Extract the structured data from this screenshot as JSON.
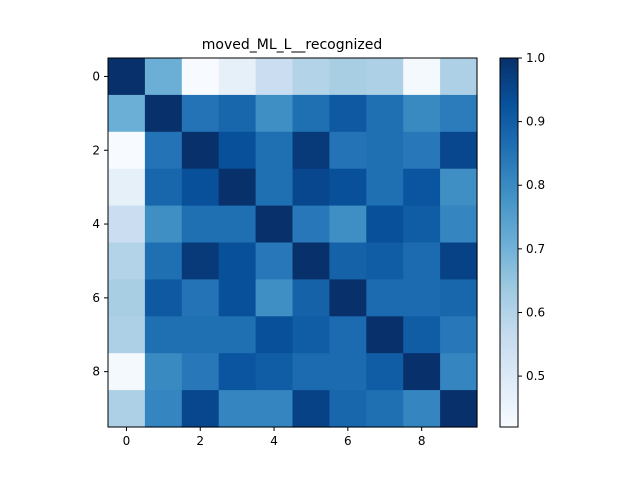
{
  "chart_data": {
    "type": "heatmap",
    "title": "moved_ML_L__recognized",
    "xlabel": "",
    "ylabel": "",
    "x_ticks": [
      "0",
      "2",
      "4",
      "6",
      "8"
    ],
    "y_ticks": [
      "0",
      "2",
      "4",
      "6",
      "8"
    ],
    "colorbar": {
      "min": 0.42,
      "max": 1.0,
      "ticks": [
        "0.5",
        "0.6",
        "0.7",
        "0.8",
        "0.9",
        "1.0"
      ],
      "colormap": "Blues"
    },
    "matrix": [
      [
        1.0,
        0.71,
        0.42,
        0.47,
        0.55,
        0.6,
        0.62,
        0.61,
        0.43,
        0.61
      ],
      [
        0.71,
        1.0,
        0.85,
        0.88,
        0.79,
        0.86,
        0.91,
        0.86,
        0.8,
        0.83
      ],
      [
        0.42,
        0.85,
        1.0,
        0.93,
        0.86,
        0.98,
        0.85,
        0.86,
        0.84,
        0.95
      ],
      [
        0.47,
        0.88,
        0.93,
        1.0,
        0.86,
        0.95,
        0.93,
        0.86,
        0.92,
        0.79
      ],
      [
        0.55,
        0.79,
        0.86,
        0.86,
        1.0,
        0.84,
        0.79,
        0.93,
        0.9,
        0.81
      ],
      [
        0.6,
        0.86,
        0.98,
        0.93,
        0.84,
        1.0,
        0.89,
        0.9,
        0.87,
        0.96
      ],
      [
        0.62,
        0.91,
        0.85,
        0.93,
        0.79,
        0.89,
        1.0,
        0.87,
        0.87,
        0.88
      ],
      [
        0.61,
        0.86,
        0.86,
        0.86,
        0.93,
        0.9,
        0.87,
        1.0,
        0.9,
        0.84
      ],
      [
        0.43,
        0.8,
        0.84,
        0.92,
        0.9,
        0.87,
        0.87,
        0.9,
        1.0,
        0.81
      ],
      [
        0.61,
        0.81,
        0.95,
        0.81,
        0.81,
        0.96,
        0.88,
        0.86,
        0.81,
        1.0
      ]
    ]
  }
}
